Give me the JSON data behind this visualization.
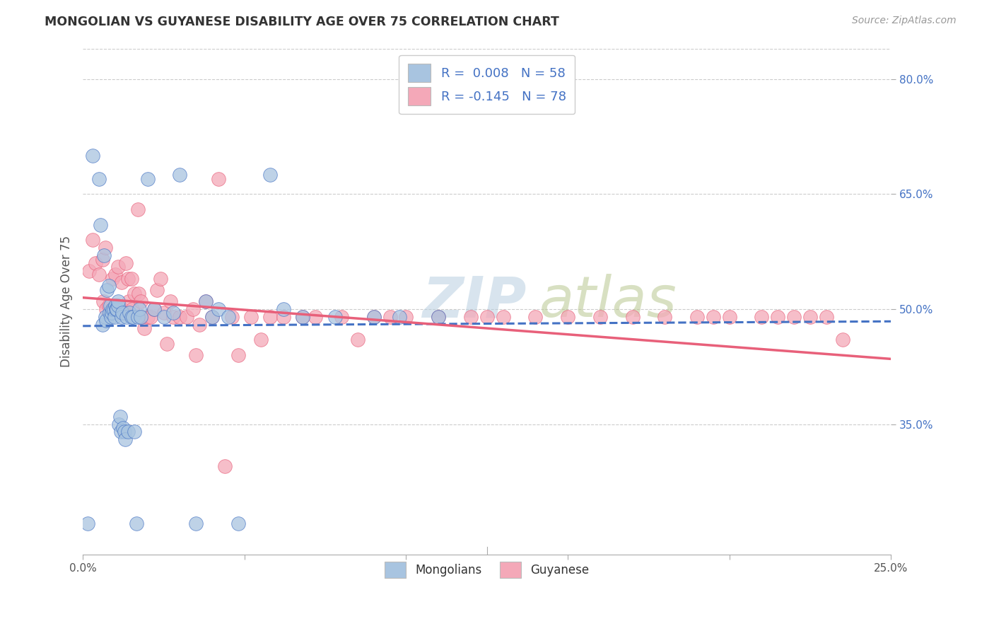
{
  "title": "MONGOLIAN VS GUYANESE DISABILITY AGE OVER 75 CORRELATION CHART",
  "source": "Source: ZipAtlas.com",
  "ylabel": "Disability Age Over 75",
  "right_yticks": [
    "80.0%",
    "65.0%",
    "50.0%",
    "35.0%"
  ],
  "right_ytick_vals": [
    80.0,
    65.0,
    50.0,
    35.0
  ],
  "xlim": [
    0.0,
    25.0
  ],
  "ylim": [
    18.0,
    84.0
  ],
  "mongolian_R": 0.008,
  "mongolian_N": 58,
  "guyanese_R": -0.145,
  "guyanese_N": 78,
  "mongolian_color": "#a8c4e0",
  "guyanese_color": "#f4a8b8",
  "mongolian_line_color": "#4472c4",
  "guyanese_line_color": "#e8607a",
  "legend_label_1": "Mongolians",
  "legend_label_2": "Guyanese",
  "mongolian_scatter_x": [
    0.15,
    0.3,
    0.5,
    0.55,
    0.6,
    0.65,
    0.7,
    0.72,
    0.75,
    0.8,
    0.82,
    0.85,
    0.88,
    0.9,
    0.92,
    0.95,
    0.97,
    1.0,
    1.02,
    1.05,
    1.08,
    1.1,
    1.12,
    1.15,
    1.18,
    1.2,
    1.22,
    1.25,
    1.28,
    1.3,
    1.35,
    1.4,
    1.45,
    1.5,
    1.55,
    1.6,
    1.65,
    1.7,
    1.75,
    1.8,
    2.0,
    2.2,
    2.5,
    2.8,
    3.0,
    3.5,
    3.8,
    4.0,
    4.2,
    4.5,
    4.8,
    5.8,
    6.2,
    6.8,
    7.8,
    9.0,
    9.8,
    11.0
  ],
  "mongolian_scatter_y": [
    22.0,
    70.0,
    67.0,
    61.0,
    48.0,
    57.0,
    49.0,
    48.5,
    52.5,
    53.0,
    49.5,
    50.5,
    49.0,
    49.5,
    50.0,
    50.0,
    49.0,
    50.5,
    50.0,
    50.0,
    50.5,
    51.0,
    35.0,
    36.0,
    34.0,
    49.0,
    49.5,
    34.5,
    34.0,
    33.0,
    49.0,
    34.0,
    49.5,
    49.0,
    49.0,
    34.0,
    22.0,
    49.0,
    50.0,
    49.0,
    67.0,
    50.0,
    49.0,
    49.5,
    67.5,
    22.0,
    51.0,
    49.0,
    50.0,
    49.0,
    22.0,
    67.5,
    50.0,
    49.0,
    49.0,
    49.0,
    49.0,
    49.0
  ],
  "guyanese_scatter_x": [
    0.2,
    0.3,
    0.4,
    0.5,
    0.6,
    0.62,
    0.7,
    0.72,
    0.8,
    0.9,
    0.92,
    1.0,
    1.02,
    1.1,
    1.12,
    1.2,
    1.22,
    1.3,
    1.32,
    1.4,
    1.42,
    1.5,
    1.52,
    1.6,
    1.7,
    1.72,
    1.8,
    1.82,
    1.9,
    2.0,
    2.1,
    2.2,
    2.3,
    2.4,
    2.5,
    2.6,
    2.7,
    2.8,
    3.0,
    3.2,
    3.4,
    3.5,
    3.6,
    3.8,
    4.0,
    4.2,
    4.4,
    4.6,
    4.8,
    5.2,
    5.5,
    5.8,
    6.2,
    6.8,
    7.2,
    8.0,
    8.5,
    9.0,
    9.5,
    10.0,
    11.0,
    12.0,
    12.5,
    13.0,
    14.0,
    15.0,
    16.0,
    17.0,
    18.0,
    19.0,
    19.5,
    20.0,
    21.0,
    21.5,
    22.0,
    22.5,
    23.0,
    23.5
  ],
  "guyanese_scatter_y": [
    55.0,
    59.0,
    56.0,
    54.5,
    56.5,
    51.0,
    58.0,
    50.0,
    50.5,
    49.5,
    54.0,
    54.5,
    50.5,
    55.5,
    49.5,
    53.5,
    50.0,
    49.5,
    56.0,
    54.0,
    51.0,
    54.0,
    50.0,
    52.0,
    63.0,
    52.0,
    51.0,
    49.0,
    47.5,
    49.0,
    49.0,
    50.0,
    52.5,
    54.0,
    49.5,
    45.5,
    51.0,
    49.0,
    49.0,
    49.0,
    50.0,
    44.0,
    48.0,
    51.0,
    49.0,
    67.0,
    29.5,
    49.0,
    44.0,
    49.0,
    46.0,
    49.0,
    49.0,
    49.0,
    49.0,
    49.0,
    46.0,
    49.0,
    49.0,
    49.0,
    49.0,
    49.0,
    49.0,
    49.0,
    49.0,
    49.0,
    49.0,
    49.0,
    49.0,
    49.0,
    49.0,
    49.0,
    49.0,
    49.0,
    49.0,
    49.0,
    49.0,
    46.0
  ],
  "mongolian_line_x": [
    0.0,
    25.0
  ],
  "mongolian_line_y": [
    47.8,
    48.4
  ],
  "guyanese_line_x": [
    0.0,
    25.0
  ],
  "guyanese_line_y": [
    51.5,
    43.5
  ],
  "watermark_zip": "ZIP",
  "watermark_atlas": "atlas",
  "watermark_color_zip": "#ccd8e8",
  "watermark_color_atlas": "#c8d8b0"
}
